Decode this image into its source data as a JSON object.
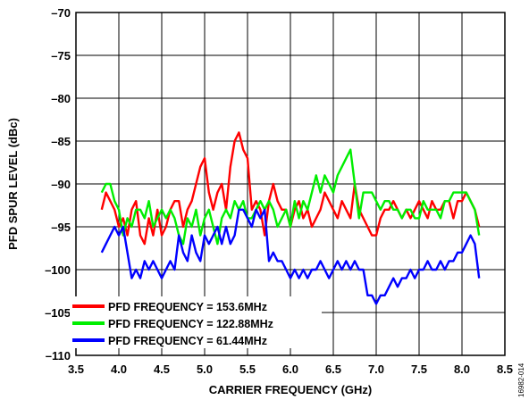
{
  "chart_data": {
    "type": "line",
    "title": "",
    "xlabel": "CARRIER FREQUENCY (GHz)",
    "ylabel": "PFD SPUR LEVEL (dBc)",
    "xlim": [
      3.5,
      8.5
    ],
    "ylim": [
      -110,
      -70
    ],
    "x_ticks": [
      3.5,
      4.0,
      4.5,
      5.0,
      5.5,
      6.0,
      6.5,
      7.0,
      7.5,
      8.0,
      8.5
    ],
    "x_tick_labels": [
      "3.5",
      "4.0",
      "4.5",
      "5.0",
      "5.5",
      "6.0",
      "6.5",
      "7.0",
      "7.5",
      "8.0",
      "8.5"
    ],
    "y_ticks": [
      -70,
      -75,
      -80,
      -85,
      -90,
      -95,
      -100,
      -105,
      -110
    ],
    "y_tick_labels": [
      "–70",
      "–75",
      "–80",
      "–85",
      "–90",
      "–95",
      "–100",
      "–105",
      "–110"
    ],
    "grid": true,
    "legend_position": "bottom-left",
    "figure_id": "16982-014",
    "series": [
      {
        "name": "PFD FREQUENCY = 153.6MHz",
        "color": "#ff0000",
        "x": [
          3.8,
          3.85,
          3.9,
          3.95,
          4.0,
          4.05,
          4.1,
          4.15,
          4.2,
          4.25,
          4.3,
          4.35,
          4.4,
          4.45,
          4.5,
          4.55,
          4.6,
          4.65,
          4.7,
          4.75,
          4.8,
          4.85,
          4.9,
          4.95,
          5.0,
          5.05,
          5.1,
          5.15,
          5.2,
          5.25,
          5.3,
          5.35,
          5.4,
          5.45,
          5.5,
          5.55,
          5.6,
          5.65,
          5.7,
          5.75,
          5.8,
          5.85,
          5.9,
          5.95,
          6.0,
          6.05,
          6.1,
          6.15,
          6.2,
          6.25,
          6.3,
          6.35,
          6.4,
          6.45,
          6.5,
          6.55,
          6.6,
          6.65,
          6.7,
          6.75,
          6.8,
          6.85,
          6.9,
          6.95,
          7.0,
          7.05,
          7.1,
          7.15,
          7.2,
          7.25,
          7.3,
          7.35,
          7.4,
          7.45,
          7.5,
          7.55,
          7.6,
          7.65,
          7.7,
          7.75,
          7.8,
          7.85,
          7.9,
          7.95,
          8.0,
          8.05,
          8.1,
          8.15,
          8.2
        ],
        "y": [
          -93,
          -91,
          -92,
          -93,
          -95,
          -94,
          -96,
          -93,
          -92,
          -96,
          -97,
          -94,
          -96,
          -93,
          -96,
          -95,
          -93,
          -92,
          -92,
          -95,
          -93,
          -92,
          -90,
          -88,
          -87,
          -91,
          -93,
          -91,
          -90,
          -93,
          -88,
          -85,
          -84,
          -86,
          -87,
          -93,
          -92,
          -93,
          -96,
          -92,
          -90,
          -92,
          -93,
          -93,
          -95,
          -93,
          -92,
          -94,
          -93,
          -95,
          -94,
          -93,
          -91,
          -92,
          -93,
          -94,
          -92,
          -93,
          -94,
          -90,
          -93,
          -94,
          -95,
          -96,
          -96,
          -94,
          -93,
          -93,
          -92,
          -93,
          -94,
          -93,
          -94,
          -93,
          -92,
          -93,
          -94,
          -92,
          -93,
          -93,
          -92,
          -92,
          -94,
          -92,
          -92,
          -91,
          -92,
          -93,
          -95
        ]
      },
      {
        "name": "PFD FREQUENCY = 122.88MHz",
        "color": "#00ee00",
        "x": [
          3.8,
          3.85,
          3.9,
          3.95,
          4.0,
          4.05,
          4.1,
          4.15,
          4.2,
          4.25,
          4.3,
          4.35,
          4.4,
          4.45,
          4.5,
          4.55,
          4.6,
          4.65,
          4.7,
          4.75,
          4.8,
          4.85,
          4.9,
          4.95,
          5.0,
          5.05,
          5.1,
          5.15,
          5.2,
          5.25,
          5.3,
          5.35,
          5.4,
          5.45,
          5.5,
          5.55,
          5.6,
          5.65,
          5.7,
          5.75,
          5.8,
          5.85,
          5.9,
          5.95,
          6.0,
          6.05,
          6.1,
          6.15,
          6.2,
          6.25,
          6.3,
          6.35,
          6.4,
          6.45,
          6.5,
          6.55,
          6.6,
          6.65,
          6.7,
          6.75,
          6.8,
          6.85,
          6.9,
          6.95,
          7.0,
          7.05,
          7.1,
          7.15,
          7.2,
          7.25,
          7.3,
          7.35,
          7.4,
          7.45,
          7.5,
          7.55,
          7.6,
          7.65,
          7.7,
          7.75,
          7.8,
          7.85,
          7.9,
          7.95,
          8.0,
          8.05,
          8.1,
          8.15,
          8.2
        ],
        "y": [
          -91,
          -90,
          -90,
          -92,
          -93,
          -96,
          -94,
          -95,
          -93,
          -93,
          -94,
          -92,
          -95,
          -94,
          -93,
          -94,
          -93,
          -94,
          -96,
          -97,
          -94,
          -95,
          -93,
          -96,
          -94,
          -93,
          -95,
          -97,
          -94,
          -93,
          -94,
          -92,
          -93,
          -92,
          -94,
          -94,
          -93,
          -92,
          -93,
          -92,
          -93,
          -95,
          -94,
          -93,
          -95,
          -92,
          -94,
          -92,
          -93,
          -91,
          -89,
          -91,
          -89,
          -90,
          -91,
          -89,
          -88,
          -87,
          -86,
          -90,
          -94,
          -91,
          -91,
          -91,
          -92,
          -93,
          -92,
          -92,
          -93,
          -93,
          -94,
          -93,
          -93,
          -94,
          -94,
          -92,
          -93,
          -93,
          -93,
          -94,
          -92,
          -92,
          -91,
          -91,
          -91,
          -91,
          -92,
          -93,
          -96
        ]
      },
      {
        "name": "PFD FREQUENCY = 61.44MHz",
        "color": "#0000ff",
        "x": [
          3.8,
          3.85,
          3.9,
          3.95,
          4.0,
          4.05,
          4.1,
          4.15,
          4.2,
          4.25,
          4.3,
          4.35,
          4.4,
          4.45,
          4.5,
          4.55,
          4.6,
          4.65,
          4.7,
          4.75,
          4.8,
          4.85,
          4.9,
          4.95,
          5.0,
          5.05,
          5.1,
          5.15,
          5.2,
          5.25,
          5.3,
          5.35,
          5.4,
          5.45,
          5.5,
          5.55,
          5.6,
          5.65,
          5.7,
          5.75,
          5.8,
          5.85,
          5.9,
          5.95,
          6.0,
          6.05,
          6.1,
          6.15,
          6.2,
          6.25,
          6.3,
          6.35,
          6.4,
          6.45,
          6.5,
          6.55,
          6.6,
          6.65,
          6.7,
          6.75,
          6.8,
          6.85,
          6.9,
          6.95,
          7.0,
          7.05,
          7.1,
          7.15,
          7.2,
          7.25,
          7.3,
          7.35,
          7.4,
          7.45,
          7.5,
          7.55,
          7.6,
          7.65,
          7.7,
          7.75,
          7.8,
          7.85,
          7.9,
          7.95,
          8.0,
          8.05,
          8.1,
          8.15,
          8.2
        ],
        "y": [
          -98,
          -97,
          -96,
          -95,
          -96,
          -95,
          -98,
          -101,
          -100,
          -101,
          -99,
          -100,
          -99,
          -100,
          -101,
          -100,
          -99,
          -100,
          -96,
          -98,
          -99,
          -96,
          -98,
          -99,
          -96,
          -97,
          -96,
          -95,
          -97,
          -95,
          -97,
          -96,
          -93,
          -93,
          -94,
          -95,
          -93,
          -94,
          -93,
          -99,
          -98,
          -99,
          -99,
          -100,
          -101,
          -100,
          -101,
          -100,
          -101,
          -100,
          -100,
          -99,
          -100,
          -101,
          -100,
          -99,
          -100,
          -99,
          -100,
          -99,
          -100,
          -100,
          -103,
          -103,
          -104,
          -103,
          -103,
          -102,
          -101,
          -102,
          -101,
          -101,
          -100,
          -101,
          -100,
          -100,
          -99,
          -100,
          -100,
          -99,
          -100,
          -99,
          -99,
          -98,
          -98,
          -97,
          -96,
          -97,
          -101
        ]
      }
    ]
  }
}
